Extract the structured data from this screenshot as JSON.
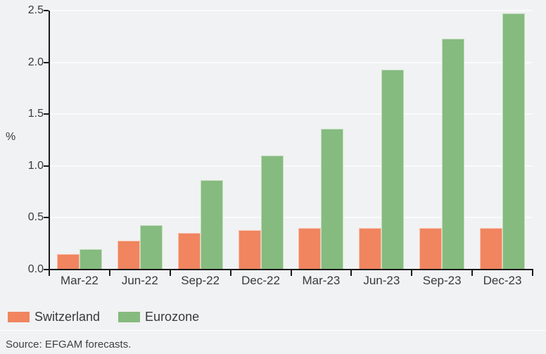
{
  "chart_data": {
    "type": "bar",
    "categories": [
      "Mar-22",
      "Jun-22",
      "Sep-22",
      "Dec-22",
      "Mar-23",
      "Jun-23",
      "Sep-23",
      "Dec-23"
    ],
    "series": [
      {
        "name": "Switzerland",
        "color": "#F0855F",
        "values": [
          0.15,
          0.28,
          0.35,
          0.38,
          0.4,
          0.4,
          0.4,
          0.4
        ]
      },
      {
        "name": "Eurozone",
        "color": "#85BB7F",
        "values": [
          0.2,
          0.43,
          0.86,
          1.1,
          1.36,
          1.93,
          2.23,
          2.47
        ]
      }
    ],
    "ylabel": "%",
    "ylim": [
      0,
      2.5
    ],
    "ytick_labels": [
      "0.0",
      "0.5",
      "1.0",
      "1.5",
      "2.0",
      "2.5"
    ],
    "grid": true,
    "legend_position": "bottom-left"
  },
  "footer": {
    "source": "Source: EFGAM forecasts."
  },
  "colors": {
    "background": "#F1F2F3",
    "gridline": "#FAFBFC",
    "axis": "#1A1A1A",
    "text": "#3A3A3A"
  }
}
